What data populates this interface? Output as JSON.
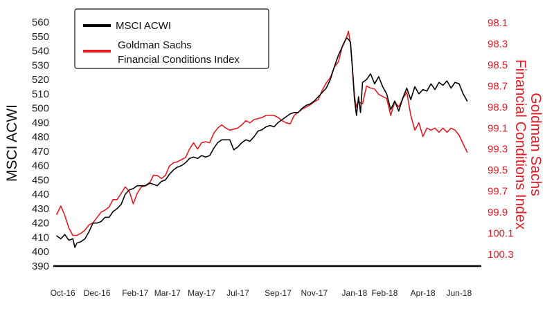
{
  "chart_data": {
    "type": "line",
    "title": "",
    "colors": {
      "msci": "#000000",
      "gs": "#e31b23",
      "axis": "#000000",
      "text": "#222222"
    },
    "y_left": {
      "label": "MSCI ACWI",
      "min": 390,
      "max": 560,
      "ticks": [
        "560",
        "550",
        "540",
        "530",
        "520",
        "510",
        "500",
        "490",
        "480",
        "470",
        "460",
        "450",
        "440",
        "430",
        "420",
        "410",
        "400",
        "390"
      ]
    },
    "y_right": {
      "label": "Goldman Sachs Financial Conditions Index",
      "top": 98.1,
      "bottom": 100.3,
      "inverted": true,
      "ticks": [
        "98.1",
        "98.3",
        "98.5",
        "98.7",
        "98.9",
        "99.1",
        "99.3",
        "99.5",
        "99.7",
        "99.9",
        "100.1",
        "100.3"
      ]
    },
    "x": {
      "start": 0,
      "end": 21,
      "tick_labels": [
        "Oct-16",
        "Dec-16",
        "Feb-17",
        "Mar-17",
        "May-17",
        "Jul-17",
        "Sep-17",
        "Nov-17",
        "Jan-18",
        "Feb-18",
        "Apr-18",
        "Jun-18"
      ],
      "tick_positions": [
        0.3,
        2.0,
        3.9,
        5.5,
        7.2,
        9.0,
        11.0,
        12.8,
        14.8,
        16.3,
        18.2,
        20.0
      ]
    },
    "legend": {
      "position": "top-left",
      "entries": [
        {
          "label": "MSCI ACWI"
        },
        {
          "line1": "Goldman Sachs",
          "line2": "Financial Conditions Index"
        }
      ]
    },
    "series": [
      {
        "name": "MSCI ACWI",
        "axis": "left",
        "points": [
          [
            0.0,
            411
          ],
          [
            0.2,
            409
          ],
          [
            0.4,
            412
          ],
          [
            0.6,
            408
          ],
          [
            0.8,
            409
          ],
          [
            0.9,
            403
          ],
          [
            1.0,
            406
          ],
          [
            1.2,
            407
          ],
          [
            1.4,
            409
          ],
          [
            1.6,
            414
          ],
          [
            1.7,
            417
          ],
          [
            1.8,
            420
          ],
          [
            2.0,
            420
          ],
          [
            2.2,
            421
          ],
          [
            2.4,
            424
          ],
          [
            2.6,
            424
          ],
          [
            2.8,
            428
          ],
          [
            3.0,
            430
          ],
          [
            3.2,
            433
          ],
          [
            3.4,
            440
          ],
          [
            3.6,
            443
          ],
          [
            3.8,
            444
          ],
          [
            4.0,
            446
          ],
          [
            4.2,
            446
          ],
          [
            4.4,
            446
          ],
          [
            4.6,
            448
          ],
          [
            4.8,
            447
          ],
          [
            5.0,
            446
          ],
          [
            5.2,
            449
          ],
          [
            5.4,
            450
          ],
          [
            5.6,
            454
          ],
          [
            5.8,
            457
          ],
          [
            6.0,
            459
          ],
          [
            6.2,
            460
          ],
          [
            6.4,
            462
          ],
          [
            6.6,
            465
          ],
          [
            6.8,
            466
          ],
          [
            7.0,
            465
          ],
          [
            7.2,
            467
          ],
          [
            7.4,
            466
          ],
          [
            7.6,
            467
          ],
          [
            7.8,
            472
          ],
          [
            8.0,
            476
          ],
          [
            8.2,
            478
          ],
          [
            8.4,
            478
          ],
          [
            8.6,
            478
          ],
          [
            8.8,
            471
          ],
          [
            9.0,
            473
          ],
          [
            9.2,
            476
          ],
          [
            9.4,
            478
          ],
          [
            9.6,
            477
          ],
          [
            9.8,
            480
          ],
          [
            10.0,
            484
          ],
          [
            10.2,
            485
          ],
          [
            10.4,
            487
          ],
          [
            10.6,
            488
          ],
          [
            10.8,
            487
          ],
          [
            11.0,
            490
          ],
          [
            11.2,
            492
          ],
          [
            11.4,
            494
          ],
          [
            11.6,
            496
          ],
          [
            11.8,
            497
          ],
          [
            12.0,
            497
          ],
          [
            12.2,
            500
          ],
          [
            12.4,
            502
          ],
          [
            12.6,
            503
          ],
          [
            12.8,
            505
          ],
          [
            13.0,
            508
          ],
          [
            13.2,
            511
          ],
          [
            13.4,
            514
          ],
          [
            13.6,
            520
          ],
          [
            13.8,
            529
          ],
          [
            14.0,
            537
          ],
          [
            14.2,
            543
          ],
          [
            14.4,
            549
          ],
          [
            14.5,
            548
          ],
          [
            14.6,
            546
          ],
          [
            14.7,
            527
          ],
          [
            14.8,
            506
          ],
          [
            14.9,
            495
          ],
          [
            15.0,
            508
          ],
          [
            15.1,
            497
          ],
          [
            15.2,
            518
          ],
          [
            15.4,
            520
          ],
          [
            15.6,
            524
          ],
          [
            15.8,
            517
          ],
          [
            16.0,
            522
          ],
          [
            16.2,
            515
          ],
          [
            16.4,
            510
          ],
          [
            16.6,
            499
          ],
          [
            16.8,
            505
          ],
          [
            17.0,
            498
          ],
          [
            17.2,
            507
          ],
          [
            17.4,
            514
          ],
          [
            17.6,
            506
          ],
          [
            17.8,
            515
          ],
          [
            18.0,
            510
          ],
          [
            18.2,
            513
          ],
          [
            18.4,
            512
          ],
          [
            18.6,
            517
          ],
          [
            18.8,
            513
          ],
          [
            19.0,
            518
          ],
          [
            19.2,
            516
          ],
          [
            19.4,
            519
          ],
          [
            19.6,
            514
          ],
          [
            19.8,
            518
          ],
          [
            20.0,
            517
          ],
          [
            20.2,
            510
          ],
          [
            20.4,
            505
          ]
        ]
      },
      {
        "name": "Goldman Sachs Financial Conditions Index",
        "axis": "right",
        "points": [
          [
            0.0,
            99.92
          ],
          [
            0.2,
            99.84
          ],
          [
            0.4,
            99.93
          ],
          [
            0.6,
            100.05
          ],
          [
            0.8,
            100.12
          ],
          [
            1.0,
            100.12
          ],
          [
            1.2,
            100.1
          ],
          [
            1.4,
            100.07
          ],
          [
            1.6,
            100.02
          ],
          [
            1.8,
            100.0
          ],
          [
            2.0,
            99.95
          ],
          [
            2.2,
            99.9
          ],
          [
            2.4,
            99.88
          ],
          [
            2.6,
            99.85
          ],
          [
            2.8,
            99.78
          ],
          [
            3.0,
            99.78
          ],
          [
            3.2,
            99.72
          ],
          [
            3.4,
            99.66
          ],
          [
            3.6,
            99.7
          ],
          [
            3.8,
            99.82
          ],
          [
            4.0,
            99.72
          ],
          [
            4.2,
            99.66
          ],
          [
            4.4,
            99.65
          ],
          [
            4.6,
            99.63
          ],
          [
            4.8,
            99.55
          ],
          [
            5.0,
            99.55
          ],
          [
            5.2,
            99.58
          ],
          [
            5.4,
            99.55
          ],
          [
            5.6,
            99.46
          ],
          [
            5.8,
            99.43
          ],
          [
            6.0,
            99.42
          ],
          [
            6.2,
            99.4
          ],
          [
            6.4,
            99.38
          ],
          [
            6.6,
            99.3
          ],
          [
            6.8,
            99.24
          ],
          [
            7.0,
            99.3
          ],
          [
            7.2,
            99.24
          ],
          [
            7.4,
            99.23
          ],
          [
            7.6,
            99.24
          ],
          [
            7.8,
            99.15
          ],
          [
            8.0,
            99.1
          ],
          [
            8.2,
            99.07
          ],
          [
            8.4,
            99.1
          ],
          [
            8.6,
            99.12
          ],
          [
            8.8,
            99.11
          ],
          [
            9.0,
            99.1
          ],
          [
            9.2,
            99.07
          ],
          [
            9.4,
            99.03
          ],
          [
            9.6,
            99.05
          ],
          [
            9.8,
            99.02
          ],
          [
            10.0,
            99.01
          ],
          [
            10.2,
            99.0
          ],
          [
            10.4,
            98.98
          ],
          [
            10.6,
            98.98
          ],
          [
            10.8,
            98.98
          ],
          [
            11.0,
            99.0
          ],
          [
            11.2,
            99.03
          ],
          [
            11.4,
            99.05
          ],
          [
            11.6,
            99.06
          ],
          [
            11.8,
            98.98
          ],
          [
            12.0,
            98.95
          ],
          [
            12.2,
            98.92
          ],
          [
            12.4,
            98.9
          ],
          [
            12.6,
            98.88
          ],
          [
            12.8,
            98.85
          ],
          [
            13.0,
            98.83
          ],
          [
            13.2,
            98.74
          ],
          [
            13.4,
            98.67
          ],
          [
            13.6,
            98.62
          ],
          [
            13.8,
            98.52
          ],
          [
            14.0,
            98.47
          ],
          [
            14.2,
            98.32
          ],
          [
            14.4,
            98.24
          ],
          [
            14.5,
            98.18
          ],
          [
            14.6,
            98.3
          ],
          [
            14.7,
            98.53
          ],
          [
            14.8,
            98.8
          ],
          [
            14.9,
            98.9
          ],
          [
            15.0,
            98.85
          ],
          [
            15.2,
            98.87
          ],
          [
            15.4,
            98.7
          ],
          [
            15.6,
            98.72
          ],
          [
            15.8,
            98.73
          ],
          [
            16.0,
            98.78
          ],
          [
            16.2,
            98.8
          ],
          [
            16.4,
            98.82
          ],
          [
            16.6,
            98.98
          ],
          [
            16.8,
            98.85
          ],
          [
            17.0,
            98.9
          ],
          [
            17.2,
            98.82
          ],
          [
            17.4,
            98.76
          ],
          [
            17.6,
            98.98
          ],
          [
            17.8,
            99.12
          ],
          [
            18.0,
            99.05
          ],
          [
            18.2,
            99.18
          ],
          [
            18.4,
            99.1
          ],
          [
            18.6,
            99.12
          ],
          [
            18.8,
            99.1
          ],
          [
            19.0,
            99.14
          ],
          [
            19.2,
            99.1
          ],
          [
            19.4,
            99.14
          ],
          [
            19.6,
            99.1
          ],
          [
            19.8,
            99.12
          ],
          [
            20.0,
            99.17
          ],
          [
            20.2,
            99.25
          ],
          [
            20.4,
            99.33
          ]
        ]
      }
    ]
  }
}
